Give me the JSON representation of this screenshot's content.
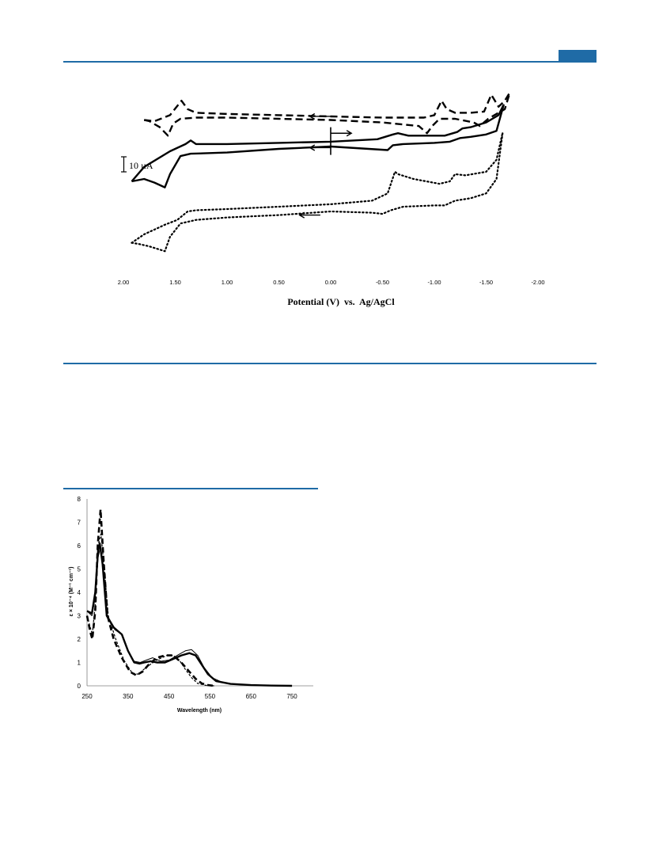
{
  "colors": {
    "accent": "#1f6ba6"
  },
  "chart_data": [
    {
      "type": "line",
      "title": "",
      "xlabel": "Potential (V)  vs.  Ag/AgCl",
      "ylabel": "",
      "xlim": [
        2.0,
        -2.0
      ],
      "x_reversed": true,
      "x_ticks": [
        "2.00",
        "1.50",
        "1.00",
        "0.50",
        "0.00",
        "-0.50",
        "-1.00",
        "-1.50",
        "-2.00"
      ],
      "x_tick_values": [
        2.0,
        1.5,
        1.0,
        0.5,
        0.0,
        -0.5,
        -1.0,
        -1.5,
        -2.0
      ],
      "scale_bar": {
        "label": "10 µA",
        "value_uA": 10
      },
      "ylim": [
        -125,
        40
      ],
      "series": [
        {
          "style": "dashed",
          "upper": [
            [
              1.8,
              -1
            ],
            [
              1.7,
              -2
            ],
            [
              1.55,
              3
            ],
            [
              1.44,
              15
            ],
            [
              1.38,
              8
            ],
            [
              1.3,
              5
            ],
            [
              1.0,
              4
            ],
            [
              0.5,
              3
            ],
            [
              0.0,
              2
            ],
            [
              -0.5,
              1
            ],
            [
              -0.9,
              1
            ],
            [
              -1.0,
              3
            ],
            [
              -1.07,
              15
            ],
            [
              -1.12,
              8
            ],
            [
              -1.2,
              5
            ],
            [
              -1.35,
              5
            ],
            [
              -1.48,
              6
            ],
            [
              -1.55,
              20
            ],
            [
              -1.62,
              10
            ],
            [
              -1.68,
              15
            ],
            [
              -1.73,
              22
            ]
          ],
          "lower": [
            [
              1.8,
              -1
            ],
            [
              1.75,
              -2
            ],
            [
              1.65,
              -7
            ],
            [
              1.57,
              -14
            ],
            [
              1.52,
              -4
            ],
            [
              1.45,
              0
            ],
            [
              1.3,
              1
            ],
            [
              1.0,
              1
            ],
            [
              0.5,
              0
            ],
            [
              0.0,
              -1
            ],
            [
              -0.5,
              -3
            ],
            [
              -0.85,
              -6
            ],
            [
              -0.93,
              -12
            ],
            [
              -0.98,
              -6
            ],
            [
              -1.05,
              0
            ],
            [
              -1.2,
              0
            ],
            [
              -1.38,
              -3
            ],
            [
              -1.44,
              -6
            ],
            [
              -1.52,
              0
            ],
            [
              -1.62,
              5
            ],
            [
              -1.68,
              8
            ],
            [
              -1.73,
              22
            ]
          ]
        },
        {
          "style": "solid",
          "upper": [
            [
              1.92,
              -52
            ],
            [
              1.8,
              -40
            ],
            [
              1.55,
              -27
            ],
            [
              1.4,
              -21
            ],
            [
              1.35,
              -18
            ],
            [
              1.3,
              -21
            ],
            [
              1.0,
              -21
            ],
            [
              0.5,
              -20
            ],
            [
              0.0,
              -19
            ],
            [
              -0.45,
              -17
            ],
            [
              -0.6,
              -13
            ],
            [
              -0.65,
              -12
            ],
            [
              -0.75,
              -14
            ],
            [
              -1.0,
              -14
            ],
            [
              -1.1,
              -14
            ],
            [
              -1.22,
              -11
            ],
            [
              -1.27,
              -8
            ],
            [
              -1.35,
              -7
            ],
            [
              -1.5,
              -3
            ],
            [
              -1.62,
              3
            ],
            [
              -1.67,
              12
            ]
          ],
          "lower": [
            [
              1.92,
              -52
            ],
            [
              1.8,
              -50
            ],
            [
              1.7,
              -53
            ],
            [
              1.6,
              -57
            ],
            [
              1.55,
              -46
            ],
            [
              1.45,
              -31
            ],
            [
              1.35,
              -29
            ],
            [
              1.0,
              -28
            ],
            [
              0.5,
              -25
            ],
            [
              0.0,
              -23
            ],
            [
              -0.55,
              -26
            ],
            [
              -0.6,
              -22
            ],
            [
              -0.7,
              -21
            ],
            [
              -1.0,
              -20
            ],
            [
              -1.15,
              -19
            ],
            [
              -1.25,
              -16
            ],
            [
              -1.35,
              -15
            ],
            [
              -1.5,
              -13
            ],
            [
              -1.6,
              -10
            ],
            [
              -1.67,
              12
            ]
          ]
        },
        {
          "style": "dotted",
          "upper": [
            [
              1.92,
              -103
            ],
            [
              1.8,
              -96
            ],
            [
              1.6,
              -88
            ],
            [
              1.48,
              -84
            ],
            [
              1.38,
              -77
            ],
            [
              1.3,
              -76
            ],
            [
              1.0,
              -75
            ],
            [
              0.5,
              -73
            ],
            [
              0.0,
              -71
            ],
            [
              -0.4,
              -68
            ],
            [
              -0.55,
              -62
            ],
            [
              -0.62,
              -44
            ],
            [
              -0.65,
              -46
            ],
            [
              -0.8,
              -50
            ],
            [
              -1.05,
              -54
            ],
            [
              -1.15,
              -52
            ],
            [
              -1.2,
              -46
            ],
            [
              -1.3,
              -47
            ],
            [
              -1.5,
              -44
            ],
            [
              -1.6,
              -34
            ],
            [
              -1.66,
              -11
            ]
          ],
          "lower": [
            [
              1.92,
              -103
            ],
            [
              1.85,
              -104
            ],
            [
              1.75,
              -106
            ],
            [
              1.6,
              -110
            ],
            [
              1.55,
              -98
            ],
            [
              1.45,
              -87
            ],
            [
              1.3,
              -84
            ],
            [
              1.0,
              -82
            ],
            [
              0.5,
              -80
            ],
            [
              0.0,
              -77
            ],
            [
              -0.4,
              -78
            ],
            [
              -0.5,
              -79
            ],
            [
              -0.58,
              -76
            ],
            [
              -0.7,
              -73
            ],
            [
              -1.0,
              -72
            ],
            [
              -1.1,
              -72
            ],
            [
              -1.2,
              -68
            ],
            [
              -1.35,
              -66
            ],
            [
              -1.5,
              -62
            ],
            [
              -1.6,
              -50
            ],
            [
              -1.66,
              -11
            ]
          ]
        }
      ],
      "arrows": [
        {
          "x_from": 0.0,
          "x_to": -0.2,
          "y": -12
        },
        {
          "x_from": 0.0,
          "x_to": 0.2,
          "y": -24
        },
        {
          "x_from": -0.02,
          "x_to": 0.2,
          "y": 2
        },
        {
          "x_from": 0.1,
          "x_to": 0.3,
          "y": -80
        }
      ],
      "start_marker": {
        "x": 0.0,
        "y_from": -7,
        "y_to": -30
      }
    },
    {
      "type": "line",
      "title": "",
      "xlabel": "Wavelength (nm)",
      "ylabel": "ε × 10⁻⁴ (M⁻¹ cm⁻¹)",
      "xlim": [
        250,
        800
      ],
      "ylim": [
        0,
        8
      ],
      "x_ticks": [
        "250",
        "350",
        "450",
        "550",
        "650",
        "750"
      ],
      "x_tick_values": [
        250,
        350,
        450,
        550,
        650,
        750
      ],
      "y_ticks": [
        "0",
        "1",
        "2",
        "3",
        "4",
        "5",
        "6",
        "7",
        "8"
      ],
      "y_tick_values": [
        0,
        1,
        2,
        3,
        4,
        5,
        6,
        7,
        8
      ],
      "series": [
        {
          "style": "dashed-thick",
          "points": [
            [
              250,
              3.0
            ],
            [
              258,
              2.3
            ],
            [
              263,
              2.0
            ],
            [
              270,
              3.2
            ],
            [
              276,
              6.0
            ],
            [
              283,
              7.55
            ],
            [
              290,
              5.5
            ],
            [
              300,
              3.0
            ],
            [
              315,
              2.0
            ],
            [
              335,
              1.2
            ],
            [
              355,
              0.6
            ],
            [
              370,
              0.45
            ],
            [
              385,
              0.6
            ],
            [
              400,
              0.9
            ],
            [
              420,
              1.2
            ],
            [
              440,
              1.3
            ],
            [
              460,
              1.3
            ],
            [
              480,
              1.0
            ],
            [
              500,
              0.6
            ],
            [
              515,
              0.3
            ],
            [
              530,
              0.1
            ],
            [
              545,
              0.03
            ],
            [
              560,
              0.0
            ]
          ]
        },
        {
          "style": "dashed-thin",
          "points": [
            [
              250,
              3.0
            ],
            [
              258,
              2.5
            ],
            [
              263,
              2.2
            ],
            [
              270,
              3.5
            ],
            [
              277,
              6.0
            ],
            [
              284,
              6.5
            ],
            [
              292,
              5.0
            ],
            [
              302,
              3.0
            ],
            [
              320,
              2.0
            ],
            [
              340,
              1.1
            ],
            [
              360,
              0.55
            ],
            [
              375,
              0.5
            ],
            [
              395,
              0.8
            ],
            [
              420,
              1.1
            ],
            [
              445,
              1.3
            ],
            [
              460,
              1.3
            ],
            [
              475,
              1.1
            ],
            [
              490,
              0.7
            ],
            [
              505,
              0.35
            ],
            [
              520,
              0.1
            ],
            [
              540,
              0.02
            ],
            [
              560,
              0.0
            ]
          ]
        },
        {
          "style": "solid-thick",
          "points": [
            [
              250,
              3.2
            ],
            [
              262,
              3.1
            ],
            [
              270,
              4.0
            ],
            [
              277,
              5.8
            ],
            [
              281,
              6.1
            ],
            [
              288,
              5.2
            ],
            [
              298,
              3.0
            ],
            [
              315,
              2.5
            ],
            [
              335,
              2.2
            ],
            [
              350,
              1.5
            ],
            [
              365,
              1.0
            ],
            [
              378,
              0.95
            ],
            [
              390,
              1.0
            ],
            [
              405,
              1.05
            ],
            [
              420,
              1.0
            ],
            [
              440,
              1.0
            ],
            [
              460,
              1.15
            ],
            [
              480,
              1.3
            ],
            [
              500,
              1.4
            ],
            [
              515,
              1.3
            ],
            [
              530,
              0.9
            ],
            [
              545,
              0.5
            ],
            [
              565,
              0.2
            ],
            [
              600,
              0.08
            ],
            [
              650,
              0.03
            ],
            [
              700,
              0.01
            ],
            [
              750,
              0.0
            ]
          ]
        },
        {
          "style": "solid-thin",
          "points": [
            [
              250,
              3.2
            ],
            [
              262,
              3.0
            ],
            [
              270,
              3.8
            ],
            [
              277,
              5.5
            ],
            [
              282,
              5.9
            ],
            [
              290,
              5.0
            ],
            [
              300,
              3.0
            ],
            [
              318,
              2.4
            ],
            [
              335,
              2.2
            ],
            [
              350,
              1.5
            ],
            [
              365,
              1.05
            ],
            [
              380,
              1.0
            ],
            [
              395,
              1.1
            ],
            [
              410,
              1.2
            ],
            [
              430,
              1.05
            ],
            [
              450,
              1.1
            ],
            [
              470,
              1.3
            ],
            [
              490,
              1.5
            ],
            [
              505,
              1.55
            ],
            [
              520,
              1.3
            ],
            [
              535,
              0.8
            ],
            [
              555,
              0.35
            ],
            [
              580,
              0.15
            ],
            [
              620,
              0.05
            ],
            [
              680,
              0.02
            ],
            [
              750,
              0.0
            ]
          ]
        }
      ]
    }
  ]
}
